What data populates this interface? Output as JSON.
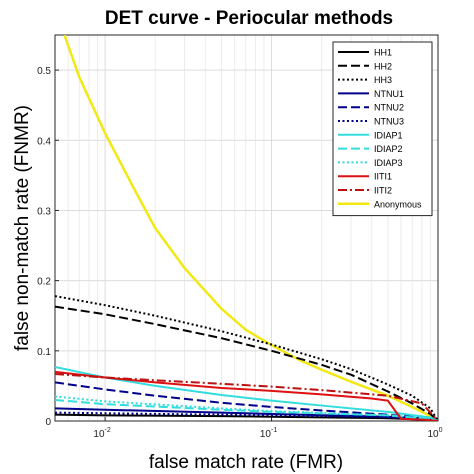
{
  "chart_data": {
    "type": "line",
    "title": "DET curve - Periocular methods",
    "xlabel": "false match rate (FMR)",
    "ylabel": "false non-match rate (FNMR)",
    "xscale": "log",
    "xlim": [
      0.005,
      1
    ],
    "ylim": [
      0,
      0.55
    ],
    "grid": true,
    "legend_position": "top-right",
    "x_ticks": [
      {
        "value": 0.01,
        "base": "10",
        "exp": "-2"
      },
      {
        "value": 0.1,
        "base": "10",
        "exp": "-1"
      },
      {
        "value": 1,
        "base": "10",
        "exp": "0"
      }
    ],
    "y_ticks": [
      0,
      0.1,
      0.2,
      0.3,
      0.4,
      0.5
    ],
    "y_tick_labels": [
      "0",
      "0.1",
      "0.2",
      "0.3",
      "0.4",
      "0.5"
    ],
    "series": [
      {
        "name": "HH1",
        "color": "#000000",
        "dash": "solid",
        "width": 2,
        "x": [
          0.005,
          0.01,
          0.05,
          0.1,
          0.5,
          0.9,
          1
        ],
        "y": [
          0.009,
          0.008,
          0.007,
          0.006,
          0.004,
          0.002,
          0
        ]
      },
      {
        "name": "HH2",
        "color": "#000000",
        "dash": "dashed",
        "width": 2,
        "x": [
          0.005,
          0.01,
          0.02,
          0.05,
          0.1,
          0.2,
          0.3,
          0.5,
          0.7,
          0.9,
          1
        ],
        "y": [
          0.163,
          0.152,
          0.138,
          0.118,
          0.1,
          0.08,
          0.066,
          0.042,
          0.025,
          0.01,
          0
        ]
      },
      {
        "name": "HH3",
        "color": "#000000",
        "dash": "dotted",
        "width": 2,
        "x": [
          0.005,
          0.01,
          0.02,
          0.05,
          0.1,
          0.2,
          0.3,
          0.5,
          0.7,
          0.9,
          1
        ],
        "y": [
          0.178,
          0.165,
          0.15,
          0.128,
          0.109,
          0.088,
          0.074,
          0.052,
          0.036,
          0.018,
          0
        ]
      },
      {
        "name": "NTNU1",
        "color": "#00008b",
        "dash": "solid",
        "width": 2,
        "x": [
          0.005,
          0.01,
          0.05,
          0.1,
          0.5,
          0.9,
          1
        ],
        "y": [
          0.018,
          0.016,
          0.012,
          0.01,
          0.006,
          0.003,
          0
        ]
      },
      {
        "name": "NTNU2",
        "color": "#00008b",
        "dash": "dashed",
        "width": 2,
        "x": [
          0.005,
          0.01,
          0.02,
          0.05,
          0.1,
          0.2,
          0.5,
          0.9,
          1
        ],
        "y": [
          0.055,
          0.045,
          0.036,
          0.026,
          0.02,
          0.015,
          0.009,
          0.004,
          0
        ]
      },
      {
        "name": "NTNU3",
        "color": "#00008b",
        "dash": "dotted",
        "width": 2,
        "x": [
          0.005,
          0.01,
          0.05,
          0.1,
          0.5,
          0.9,
          1
        ],
        "y": [
          0.012,
          0.011,
          0.009,
          0.008,
          0.005,
          0.002,
          0
        ]
      },
      {
        "name": "IDIAP1",
        "color": "#33dddd",
        "dash": "solid",
        "width": 2,
        "x": [
          0.005,
          0.01,
          0.02,
          0.05,
          0.1,
          0.2,
          0.5,
          0.9,
          1
        ],
        "y": [
          0.077,
          0.062,
          0.05,
          0.037,
          0.029,
          0.022,
          0.013,
          0.005,
          0
        ]
      },
      {
        "name": "IDIAP2",
        "color": "#33dddd",
        "dash": "dashed",
        "width": 2,
        "x": [
          0.005,
          0.01,
          0.05,
          0.1,
          0.5,
          0.9,
          1
        ],
        "y": [
          0.03,
          0.024,
          0.016,
          0.013,
          0.008,
          0.003,
          0
        ]
      },
      {
        "name": "IDIAP3",
        "color": "#33dddd",
        "dash": "dotted",
        "width": 2,
        "x": [
          0.005,
          0.01,
          0.05,
          0.1,
          0.5,
          0.9,
          1
        ],
        "y": [
          0.035,
          0.028,
          0.018,
          0.014,
          0.008,
          0.003,
          0
        ]
      },
      {
        "name": "IITI1",
        "color": "#dd1111",
        "dash": "solid",
        "width": 2,
        "x": [
          0.005,
          0.01,
          0.02,
          0.05,
          0.1,
          0.2,
          0.4,
          0.5,
          0.6,
          0.8,
          0.9,
          1
        ],
        "y": [
          0.07,
          0.062,
          0.055,
          0.047,
          0.043,
          0.038,
          0.032,
          0.029,
          0.003,
          0.002,
          0.001,
          0
        ]
      },
      {
        "name": "IITI2",
        "color": "#bb1111",
        "dash": "dashdot",
        "width": 2,
        "x": [
          0.005,
          0.01,
          0.02,
          0.05,
          0.1,
          0.2,
          0.5,
          0.8,
          0.9,
          1
        ],
        "y": [
          0.067,
          0.062,
          0.058,
          0.053,
          0.049,
          0.044,
          0.036,
          0.025,
          0.012,
          0
        ]
      },
      {
        "name": "Anonymous",
        "color": "#f2e813",
        "dash": "solid",
        "width": 2.5,
        "x": [
          0.0057,
          0.007,
          0.01,
          0.015,
          0.02,
          0.03,
          0.05,
          0.07,
          0.1,
          0.15,
          0.2,
          0.3,
          0.5,
          0.7,
          0.9,
          1
        ],
        "y": [
          0.55,
          0.49,
          0.41,
          0.33,
          0.275,
          0.218,
          0.16,
          0.13,
          0.108,
          0.086,
          0.073,
          0.056,
          0.036,
          0.02,
          0.007,
          0
        ]
      }
    ]
  }
}
